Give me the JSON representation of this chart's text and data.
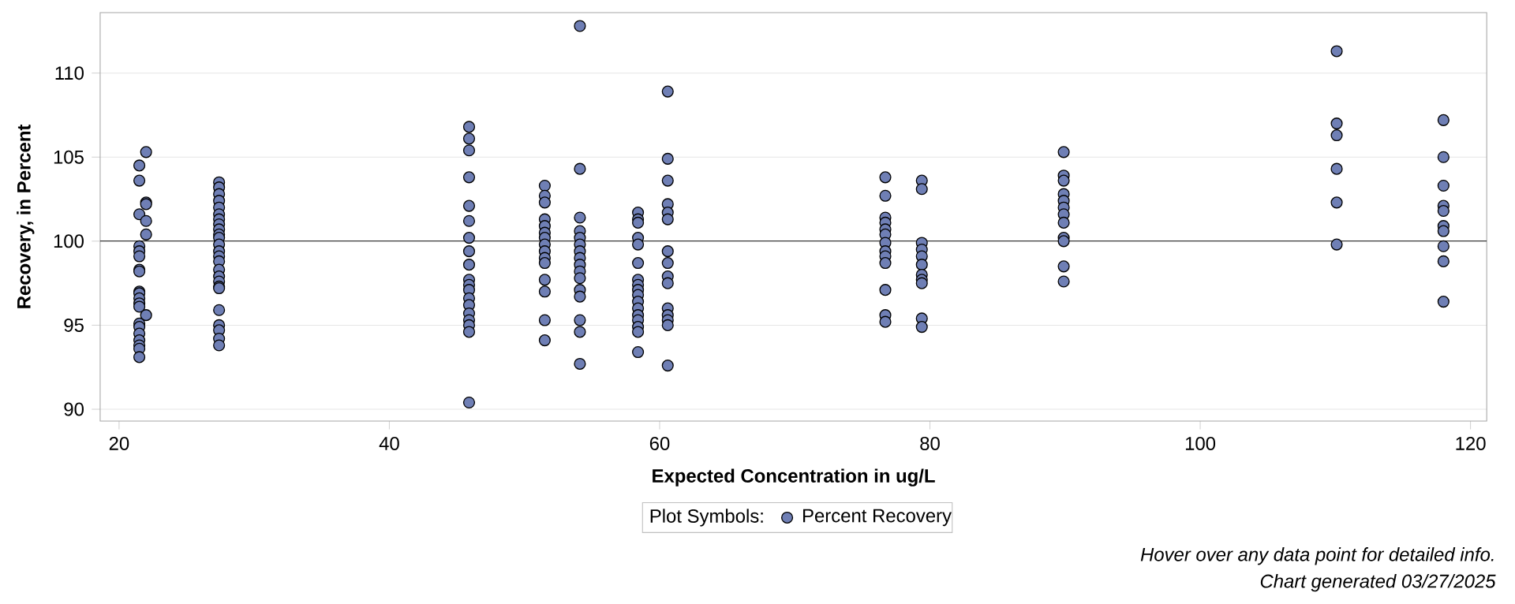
{
  "chart_data": {
    "type": "scatter",
    "xlabel": "Expected Concentration in ug/L",
    "ylabel": "Recovery, in Percent",
    "legend_title": "Plot Symbols:",
    "annotations": [
      "Hover over any data point for detailed info.",
      "Chart generated 03/27/2025"
    ],
    "series": [
      {
        "name": "Percent Recovery",
        "color": "#6f7fb5",
        "x": [
          22.0,
          21.5,
          21.5,
          22.0,
          22.0,
          21.5,
          22.0,
          22.0,
          21.5,
          21.5,
          21.5,
          21.5,
          21.5,
          21.5,
          21.5,
          21.5,
          21.5,
          21.5,
          22.0,
          21.5,
          21.5,
          21.5,
          21.5,
          21.5,
          21.5,
          21.5,
          27.4,
          27.4,
          27.4,
          27.4,
          27.4,
          27.4,
          27.4,
          27.4,
          27.4,
          27.4,
          27.4,
          27.4,
          27.4,
          27.4,
          27.4,
          27.4,
          27.4,
          27.4,
          27.4,
          27.4,
          27.4,
          27.4,
          27.4,
          27.4,
          27.4,
          45.9,
          45.9,
          45.9,
          45.9,
          45.9,
          45.9,
          45.9,
          45.9,
          45.9,
          45.9,
          45.9,
          45.9,
          45.9,
          45.9,
          45.9,
          45.9,
          45.9,
          45.9,
          45.9,
          51.5,
          51.5,
          51.5,
          51.5,
          51.5,
          51.5,
          51.5,
          51.5,
          51.5,
          51.5,
          51.5,
          51.5,
          51.5,
          51.5,
          51.5,
          54.1,
          54.1,
          54.1,
          54.1,
          54.1,
          54.1,
          54.1,
          54.1,
          54.1,
          54.1,
          54.1,
          54.1,
          54.1,
          54.1,
          54.1,
          54.1,
          58.4,
          58.4,
          58.4,
          58.4,
          58.4,
          58.4,
          58.4,
          58.4,
          58.4,
          58.4,
          58.4,
          58.4,
          58.4,
          58.4,
          58.4,
          58.4,
          58.4,
          60.6,
          60.6,
          60.6,
          60.6,
          60.6,
          60.6,
          60.6,
          60.6,
          60.6,
          60.6,
          60.6,
          60.6,
          60.6,
          60.6,
          60.6,
          76.7,
          76.7,
          76.7,
          76.7,
          76.7,
          76.7,
          76.7,
          76.7,
          76.7,
          76.7,
          76.7,
          76.7,
          76.7,
          79.4,
          79.4,
          79.4,
          79.4,
          79.4,
          79.4,
          79.4,
          79.4,
          79.4,
          79.4,
          79.4,
          89.9,
          89.9,
          89.9,
          89.9,
          89.9,
          89.9,
          89.9,
          89.9,
          89.9,
          89.9,
          89.9,
          89.9,
          110.1,
          110.1,
          110.1,
          110.1,
          110.1,
          110.1,
          118.0,
          118.0,
          118.0,
          118.0,
          118.0,
          118.0,
          118.0,
          118.0,
          118.0,
          118.0
        ],
        "values": [
          105.3,
          104.5,
          103.6,
          102.3,
          102.2,
          101.6,
          101.2,
          100.4,
          99.7,
          99.4,
          99.1,
          98.3,
          98.2,
          97.0,
          96.9,
          96.6,
          96.3,
          96.1,
          95.6,
          95.1,
          94.9,
          94.5,
          94.1,
          93.8,
          93.6,
          93.1,
          103.5,
          103.2,
          102.8,
          102.4,
          102.0,
          101.6,
          101.3,
          101.0,
          100.7,
          100.4,
          100.2,
          99.8,
          99.4,
          99.1,
          98.8,
          98.3,
          97.9,
          97.6,
          97.3,
          97.2,
          95.9,
          95.0,
          94.7,
          94.2,
          93.8,
          106.8,
          106.1,
          105.4,
          103.8,
          102.1,
          101.2,
          100.2,
          99.4,
          98.6,
          97.7,
          97.4,
          97.1,
          96.6,
          96.2,
          95.7,
          95.3,
          95.0,
          94.6,
          90.4,
          103.3,
          102.7,
          102.3,
          101.3,
          100.9,
          100.5,
          100.2,
          99.8,
          99.4,
          99.0,
          98.7,
          97.7,
          97.0,
          95.3,
          94.1,
          112.8,
          104.3,
          101.4,
          100.6,
          100.2,
          99.8,
          99.4,
          99.0,
          98.6,
          98.2,
          97.8,
          97.1,
          96.7,
          95.3,
          94.6,
          92.7,
          101.7,
          101.3,
          101.1,
          100.2,
          99.8,
          98.7,
          97.7,
          97.4,
          97.1,
          96.8,
          96.4,
          96.0,
          95.6,
          95.3,
          94.9,
          94.6,
          93.4,
          108.9,
          104.9,
          103.6,
          102.2,
          101.7,
          101.3,
          99.4,
          98.7,
          97.9,
          97.5,
          96.0,
          95.6,
          95.3,
          95.0,
          92.6,
          103.8,
          102.7,
          101.4,
          101.1,
          100.7,
          100.4,
          99.9,
          99.4,
          99.1,
          98.7,
          97.1,
          95.6,
          95.2,
          103.6,
          103.1,
          99.9,
          99.5,
          99.1,
          98.6,
          98.0,
          97.7,
          97.5,
          95.4,
          94.9,
          105.3,
          103.9,
          103.6,
          102.8,
          102.4,
          102.0,
          101.6,
          101.1,
          100.2,
          100.0,
          98.5,
          97.6,
          111.3,
          107.0,
          106.3,
          104.3,
          102.3,
          99.8,
          107.2,
          105.0,
          103.3,
          102.1,
          101.8,
          100.9,
          100.6,
          99.7,
          98.8,
          96.4
        ]
      }
    ],
    "xlim": [
      18.6,
      121.2
    ],
    "ylim": [
      89.3,
      113.6
    ],
    "xticks": [
      20,
      40,
      60,
      80,
      100,
      120
    ],
    "yticks": [
      90,
      95,
      100,
      105,
      110
    ],
    "ref_lines": [
      {
        "axis": "y",
        "value": 100,
        "color": "#000000"
      }
    ],
    "grid": "y",
    "legend": "bottom",
    "marker": "circle"
  }
}
